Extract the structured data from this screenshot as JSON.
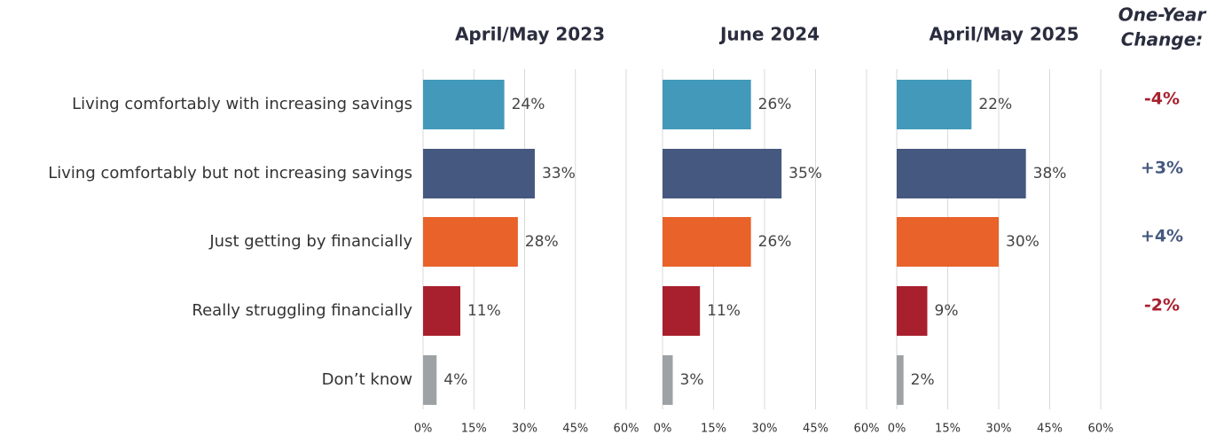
{
  "chart_data": [
    {
      "type": "bar",
      "title": "April/May 2023",
      "categories": [
        "Living comfortably with increasing savings",
        "Living comfortably but not increasing savings",
        "Just getting by financially",
        "Really struggling financially",
        "Don’t know"
      ],
      "values": [
        24,
        33,
        28,
        11,
        4
      ],
      "value_labels": [
        "24%",
        "33%",
        "28%",
        "11%",
        "4%"
      ],
      "colors": [
        "#4299b9",
        "#45587f",
        "#e8622a",
        "#a8202e",
        "#9ea2a4"
      ],
      "xlim": [
        0,
        60
      ],
      "xticks": [
        {
          "value": 0,
          "label": "0%"
        },
        {
          "value": 15,
          "label": "15%"
        },
        {
          "value": 30,
          "label": "30%"
        },
        {
          "value": 45,
          "label": "45%"
        },
        {
          "value": 60,
          "label": "60%"
        }
      ],
      "grid": true
    },
    {
      "type": "bar",
      "title": "June 2024",
      "values": [
        26,
        35,
        26,
        11,
        3
      ],
      "value_labels": [
        "26%",
        "35%",
        "26%",
        "11%",
        "3%"
      ],
      "colors": [
        "#4299b9",
        "#45587f",
        "#e8622a",
        "#a8202e",
        "#9ea2a4"
      ],
      "xlim": [
        0,
        60
      ],
      "xticks": [
        {
          "value": 0,
          "label": "0%"
        },
        {
          "value": 15,
          "label": "15%"
        },
        {
          "value": 30,
          "label": "30%"
        },
        {
          "value": 45,
          "label": "45%"
        },
        {
          "value": 60,
          "label": "60%"
        }
      ],
      "grid": true
    },
    {
      "type": "bar",
      "title": "April/May 2025",
      "values": [
        22,
        38,
        30,
        9,
        2
      ],
      "value_labels": [
        "22%",
        "38%",
        "30%",
        "9%",
        "2%"
      ],
      "colors": [
        "#4299b9",
        "#45587f",
        "#e8622a",
        "#a8202e",
        "#9ea2a4"
      ],
      "xlim": [
        0,
        60
      ],
      "xticks": [
        {
          "value": 0,
          "label": "0%"
        },
        {
          "value": 15,
          "label": "15%"
        },
        {
          "value": 30,
          "label": "30%"
        },
        {
          "value": 45,
          "label": "45%"
        },
        {
          "value": 60,
          "label": "60%"
        }
      ],
      "grid": true
    }
  ],
  "change": {
    "title_lines": [
      "One-Year",
      "Change:"
    ],
    "values": [
      -4,
      3,
      4,
      -2
    ],
    "value_labels": [
      "-4%",
      "+3%",
      "+4%",
      "-2%"
    ],
    "colors": [
      "#a8202e",
      "#45587f",
      "#45587f",
      "#a8202e"
    ]
  }
}
